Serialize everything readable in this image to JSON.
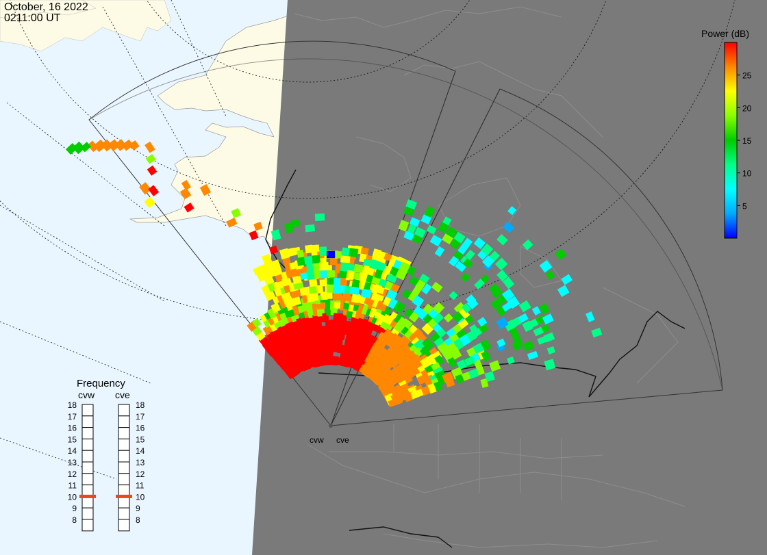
{
  "header": {
    "date": "October, 16 2022",
    "time": "0211:00 UT"
  },
  "colorbar": {
    "title": "Power (dB)",
    "ticks": [
      "25",
      "20",
      "15",
      "10",
      "5"
    ],
    "tick_values": [
      25,
      20,
      15,
      10,
      5
    ],
    "range": [
      0,
      30
    ],
    "stops": [
      "#0000ff",
      "#00aaff",
      "#00ffff",
      "#00ff88",
      "#00cc00",
      "#88ff00",
      "#ffff00",
      "#ff8800",
      "#ff0000"
    ]
  },
  "frequency": {
    "title": "Frequency",
    "radars": [
      {
        "code": "cvw",
        "value": 10.5
      },
      {
        "code": "cve",
        "value": 10.5
      }
    ],
    "scale": [
      "18",
      "17",
      "16",
      "15",
      "14",
      "13",
      "12",
      "11",
      "10",
      "9",
      "8"
    ]
  },
  "radars": [
    "cvw",
    "cve"
  ],
  "colors": {
    "ocean": "#eaf6ff",
    "land_day": "#fdfbe6",
    "night": "#7a7a7a",
    "marker": "#e8481c"
  }
}
